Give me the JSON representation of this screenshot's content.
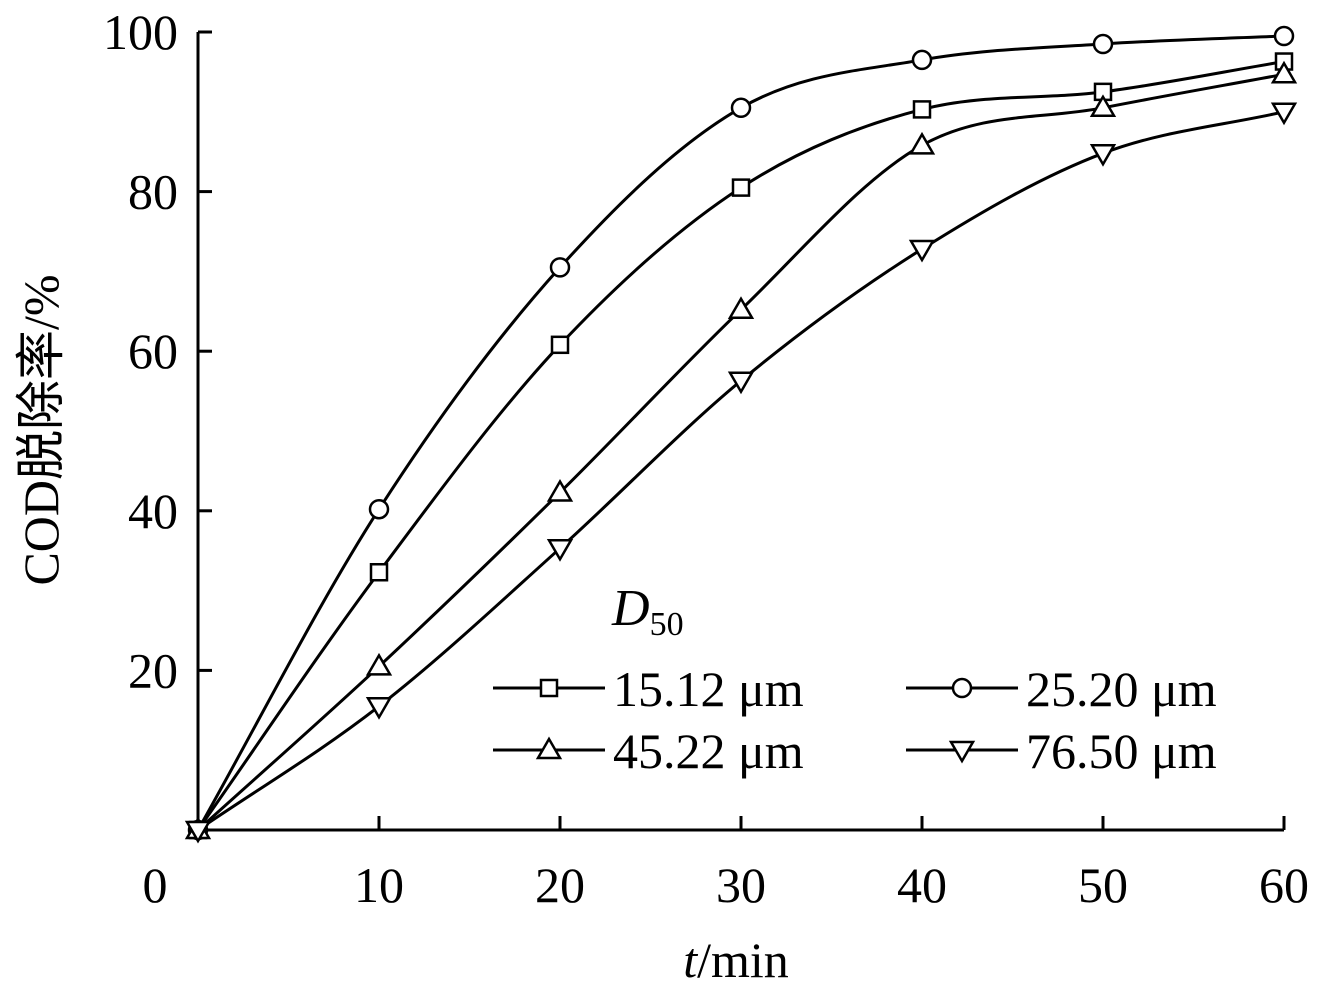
{
  "chart_data": {
    "type": "line",
    "x_title": {
      "var": "t",
      "unit": "/min"
    },
    "y_title": "COD脱除率/%",
    "x_ticks": [
      "0",
      "10",
      "20",
      "30",
      "40",
      "50",
      "60"
    ],
    "y_ticks": [
      "20",
      "40",
      "60",
      "80",
      "100"
    ],
    "xlim": [
      0,
      60
    ],
    "ylim": [
      0,
      100
    ],
    "grid": false,
    "legend": {
      "title_main": "D",
      "title_sub": "50",
      "placement": "bottom-right"
    },
    "series": [
      {
        "name": "15.12 μm",
        "marker": "square",
        "x": [
          0,
          10,
          20,
          30,
          40,
          50,
          60
        ],
        "y": [
          0,
          32.3,
          60.8,
          80.5,
          90.3,
          92.5,
          96.3
        ]
      },
      {
        "name": "25.20 μm",
        "marker": "circle",
        "x": [
          0,
          10,
          20,
          30,
          40,
          50,
          60
        ],
        "y": [
          0,
          40.2,
          70.5,
          90.5,
          96.5,
          98.5,
          99.5
        ]
      },
      {
        "name": "45.22 μm",
        "marker": "triangle-up",
        "x": [
          0,
          10,
          20,
          30,
          40,
          50,
          60
        ],
        "y": [
          0,
          20.5,
          42.3,
          65.2,
          85.8,
          90.5,
          94.7
        ]
      },
      {
        "name": "76.50 μm",
        "marker": "triangle-down",
        "x": [
          0,
          10,
          20,
          30,
          40,
          50,
          60
        ],
        "y": [
          0,
          15.5,
          35.3,
          56.3,
          72.8,
          84.8,
          90.0
        ]
      }
    ]
  }
}
